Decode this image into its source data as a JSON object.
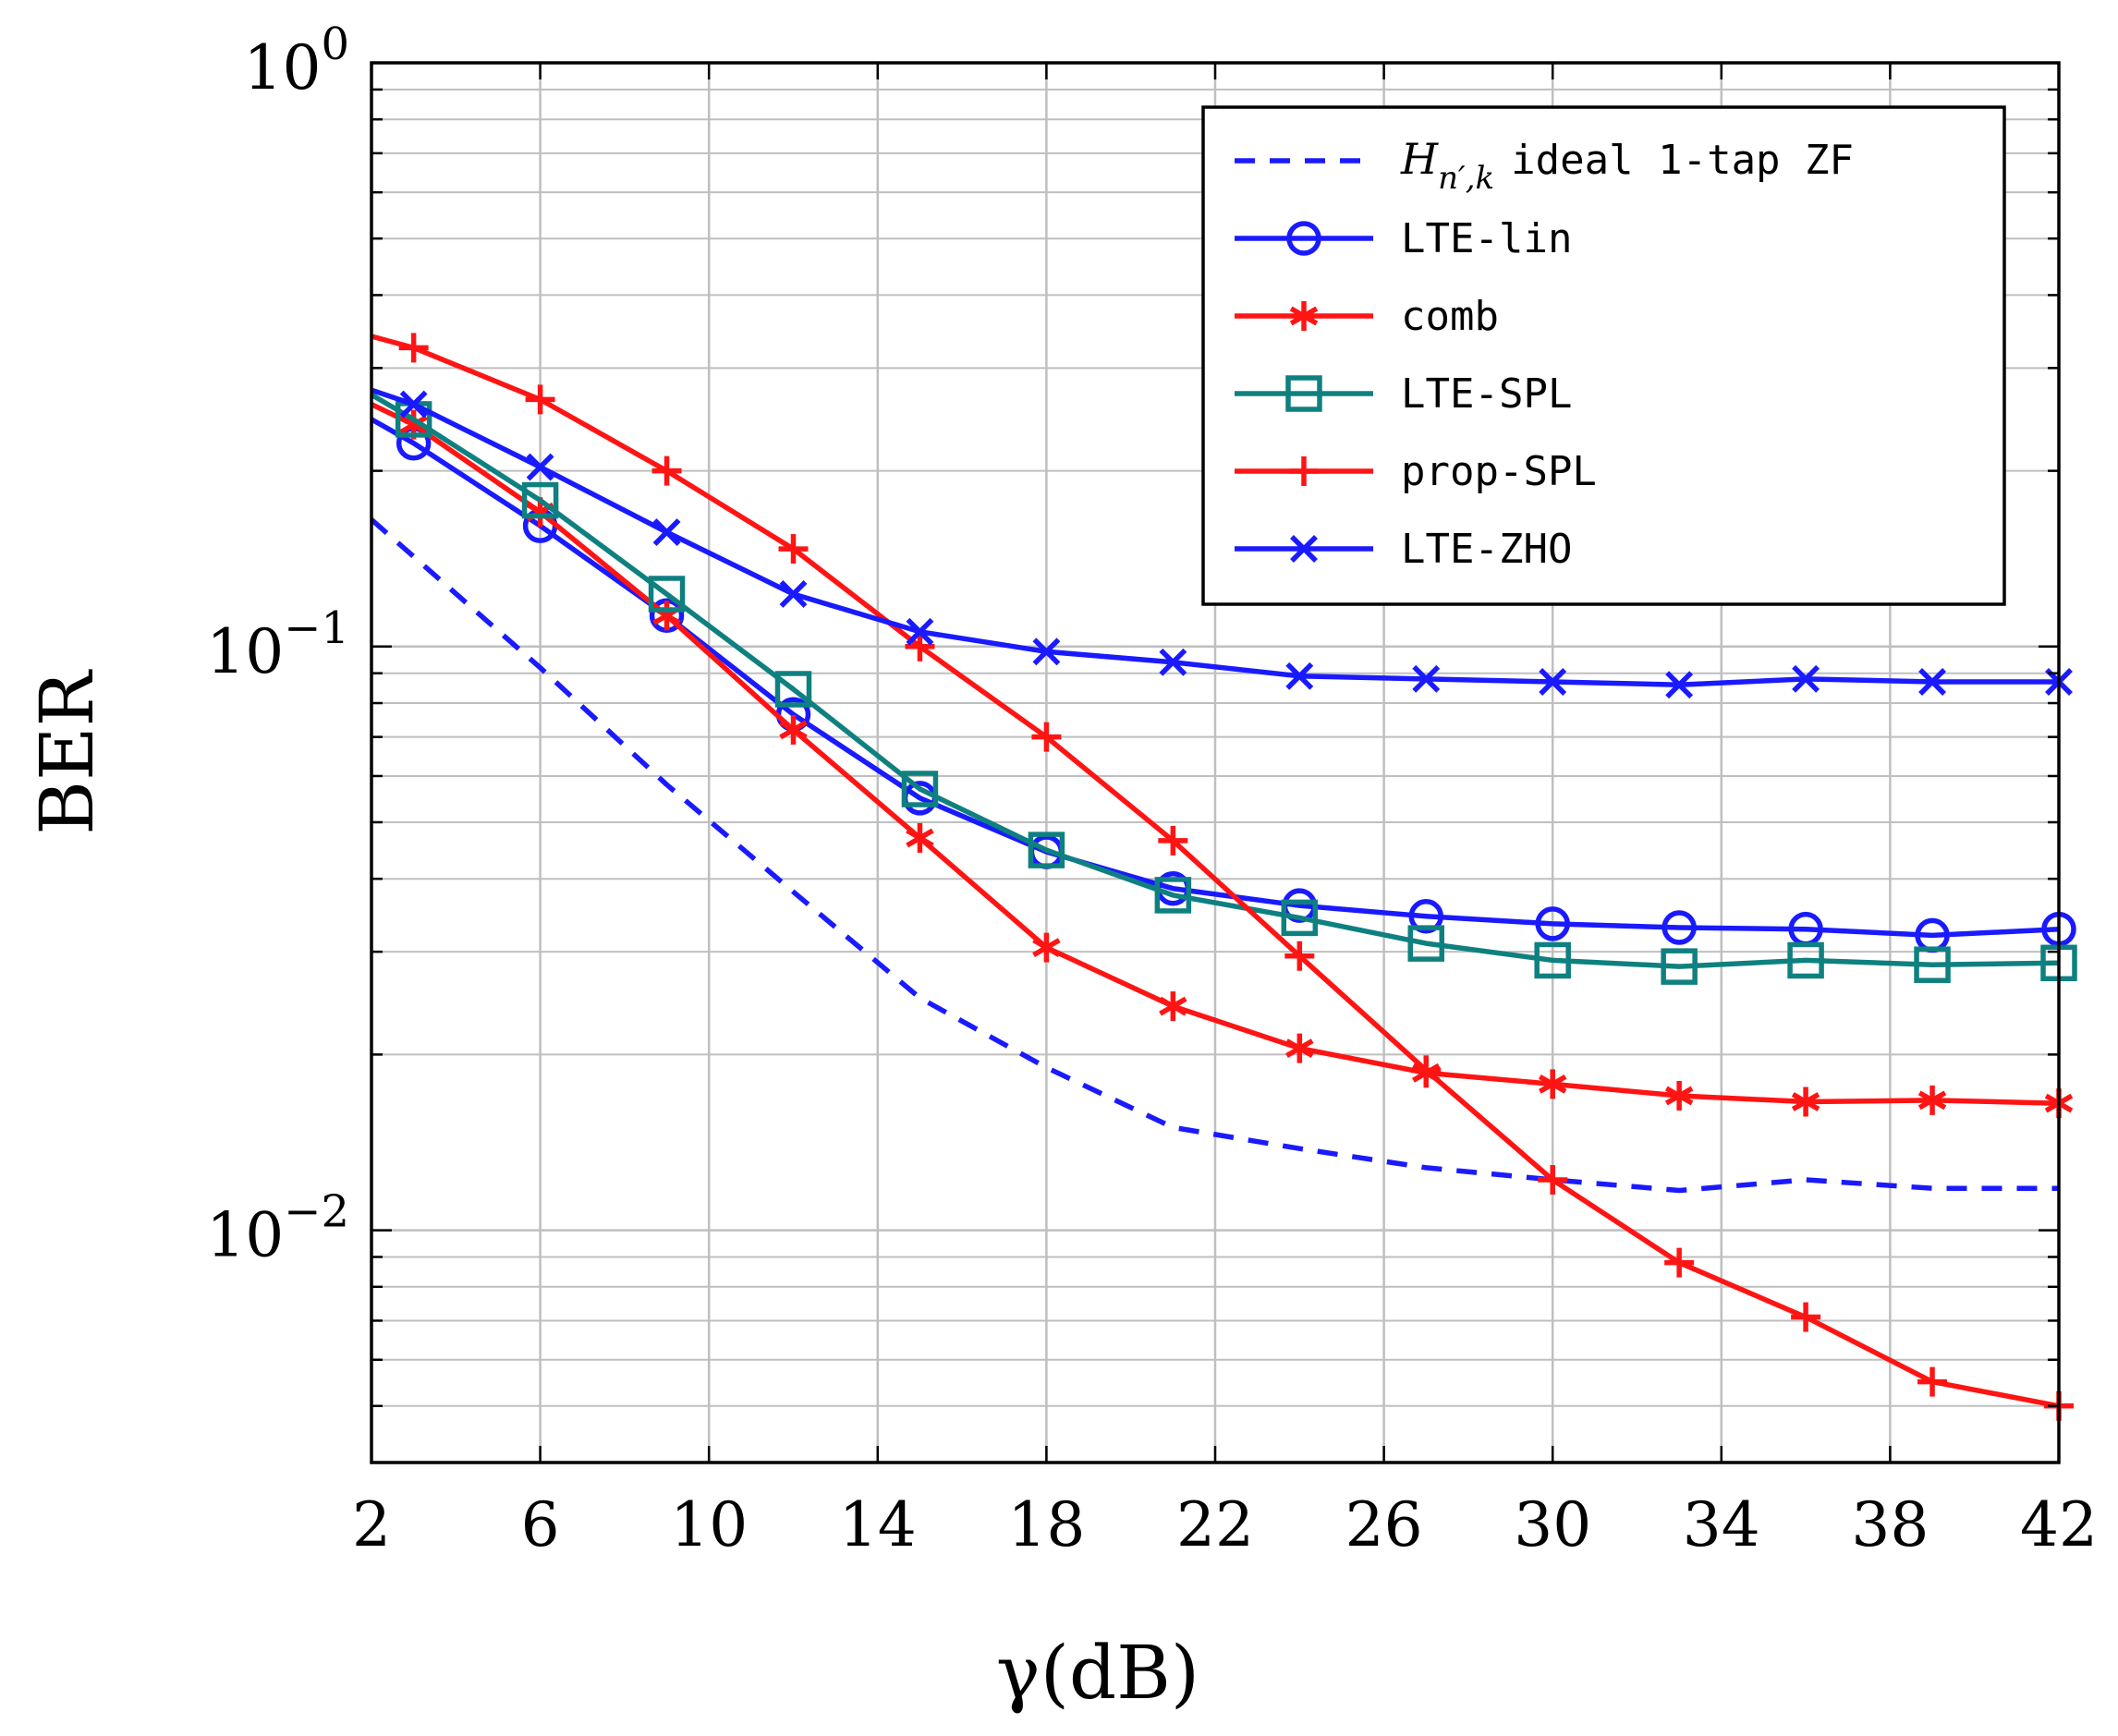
{
  "chart_data": {
    "type": "line",
    "title": "",
    "xlabel": "γ(dB)",
    "ylabel": "BER",
    "xlim": [
      2,
      42
    ],
    "ylim": [
      0.004,
      1
    ],
    "yscale": "log",
    "grid": true,
    "legend_position": "top-right",
    "x_ticks": [
      "2",
      "6",
      "10",
      "14",
      "18",
      "22",
      "26",
      "30",
      "34",
      "38",
      "42"
    ],
    "y_ticks": [
      {
        "base": "10",
        "exp": "0",
        "value": 1
      },
      {
        "base": "10",
        "exp": "−1",
        "value": 0.1
      },
      {
        "base": "10",
        "exp": "−2",
        "value": 0.01
      }
    ],
    "series": [
      {
        "name": "H_{n′,k} ideal 1-tap ZF",
        "legend_main": "H",
        "legend_sub": "n′,k",
        "legend_rest": "ideal 1-tap ZF",
        "color": "#1a1aff",
        "dashed": true,
        "marker": "none",
        "x": [
          2,
          6,
          9,
          12,
          15,
          18,
          21,
          24,
          27,
          30,
          33,
          36,
          39,
          42
        ],
        "y": [
          0.165,
          0.092,
          0.058,
          0.038,
          0.025,
          0.019,
          0.015,
          0.0138,
          0.0128,
          0.0122,
          0.0117,
          0.0122,
          0.0118,
          0.0118
        ]
      },
      {
        "name": "LTE-lin",
        "color": "#1a1aff",
        "dashed": false,
        "marker": "circle",
        "x": [
          2,
          3,
          6,
          9,
          12,
          15,
          18,
          21,
          24,
          27,
          30,
          33,
          36,
          39,
          42
        ],
        "y": [
          0.245,
          0.223,
          0.161,
          0.113,
          0.0765,
          0.055,
          0.0445,
          0.0385,
          0.036,
          0.0345,
          0.0335,
          0.033,
          0.0328,
          0.032,
          0.0328
        ]
      },
      {
        "name": "comb",
        "color": "#ff1414",
        "dashed": false,
        "marker": "asterisk",
        "x": [
          2,
          3,
          6,
          9,
          12,
          15,
          18,
          21,
          24,
          27,
          30,
          33,
          36,
          39,
          42
        ],
        "y": [
          0.26,
          0.24,
          0.17,
          0.113,
          0.072,
          0.047,
          0.0305,
          0.0242,
          0.0205,
          0.0186,
          0.0178,
          0.017,
          0.0166,
          0.0167,
          0.0165
        ]
      },
      {
        "name": "LTE-SPL",
        "color": "#0f8080",
        "dashed": false,
        "marker": "square",
        "x": [
          2,
          3,
          6,
          9,
          12,
          15,
          18,
          21,
          24,
          27,
          30,
          33,
          36,
          39,
          42
        ],
        "y": [
          0.27,
          0.245,
          0.178,
          0.123,
          0.0845,
          0.057,
          0.0448,
          0.0375,
          0.0343,
          0.031,
          0.029,
          0.0283,
          0.029,
          0.0285,
          0.0287
        ]
      },
      {
        "name": "prop-SPL",
        "color": "#ff1414",
        "dashed": false,
        "marker": "plus",
        "x": [
          2,
          3,
          6,
          9,
          12,
          15,
          18,
          21,
          24,
          27,
          30,
          33,
          36,
          39,
          42
        ],
        "y": [
          0.34,
          0.325,
          0.265,
          0.2,
          0.147,
          0.1,
          0.07,
          0.0465,
          0.0295,
          0.0188,
          0.0122,
          0.0088,
          0.0071,
          0.0055,
          0.005
        ]
      },
      {
        "name": "LTE-ZHO",
        "color": "#1a1aff",
        "dashed": false,
        "marker": "x",
        "x": [
          2,
          3,
          6,
          9,
          12,
          15,
          18,
          21,
          24,
          27,
          30,
          33,
          36,
          39,
          42
        ],
        "y": [
          0.275,
          0.26,
          0.203,
          0.157,
          0.123,
          0.106,
          0.098,
          0.094,
          0.089,
          0.088,
          0.087,
          0.086,
          0.088,
          0.087,
          0.087
        ]
      }
    ]
  }
}
